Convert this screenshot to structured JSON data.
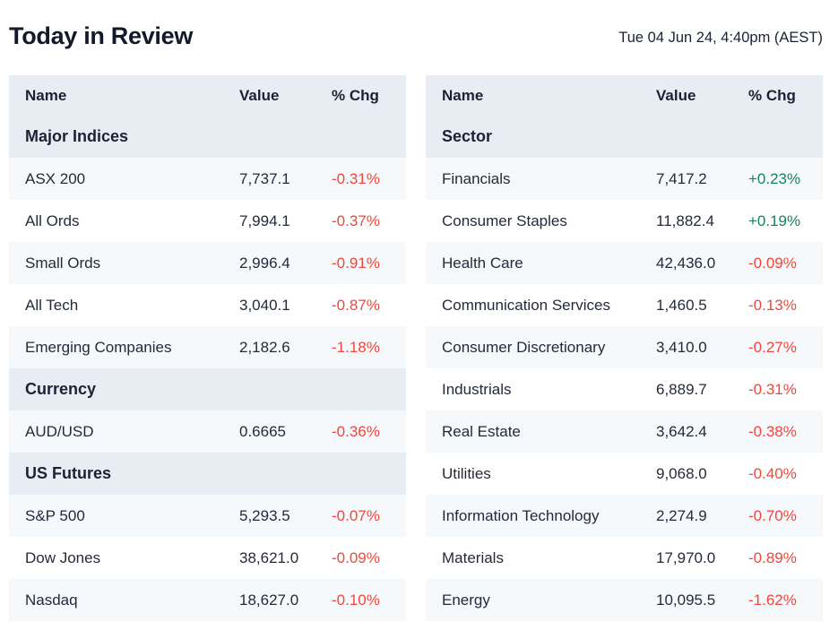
{
  "header": {
    "title": "Today in Review",
    "timestamp": "Tue 04 Jun 24, 4:40pm (AEST)"
  },
  "colors": {
    "header_row_bg": "#e8edf4",
    "stripe_row_bg": "#f6f9fc",
    "negative_change": "#f2463a",
    "positive_change": "#17835a",
    "title_text": "#12192b",
    "body_text": "#232b3b"
  },
  "chart_data": [
    {
      "type": "table",
      "title": "Major Indices, Currency and US Futures",
      "columns": [
        "Name",
        "Value",
        "% Chg"
      ],
      "sections": [
        {
          "header": "Major Indices",
          "rows": [
            [
              "ASX 200",
              "7,737.1",
              "-0.31%"
            ],
            [
              "All Ords",
              "7,994.1",
              "-0.37%"
            ],
            [
              "Small Ords",
              "2,996.4",
              "-0.91%"
            ],
            [
              "All Tech",
              "3,040.1",
              "-0.87%"
            ],
            [
              "Emerging Companies",
              "2,182.6",
              "-1.18%"
            ]
          ]
        },
        {
          "header": "Currency",
          "rows": [
            [
              "AUD/USD",
              "0.6665",
              "-0.36%"
            ]
          ]
        },
        {
          "header": "US Futures",
          "rows": [
            [
              "S&P 500",
              "5,293.5",
              "-0.07%"
            ],
            [
              "Dow Jones",
              "38,621.0",
              "-0.09%"
            ],
            [
              "Nasdaq",
              "18,627.0",
              "-0.10%"
            ]
          ]
        }
      ]
    },
    {
      "type": "table",
      "title": "Sectors",
      "columns": [
        "Name",
        "Value",
        "% Chg"
      ],
      "sections": [
        {
          "header": "Sector",
          "rows": [
            [
              "Financials",
              "7,417.2",
              "+0.23%"
            ],
            [
              "Consumer Staples",
              "11,882.4",
              "+0.19%"
            ],
            [
              "Health Care",
              "42,436.0",
              "-0.09%"
            ],
            [
              "Communication Services",
              "1,460.5",
              "-0.13%"
            ],
            [
              "Consumer Discretionary",
              "3,410.0",
              "-0.27%"
            ],
            [
              "Industrials",
              "6,889.7",
              "-0.31%"
            ],
            [
              "Real Estate",
              "3,642.4",
              "-0.38%"
            ],
            [
              "Utilities",
              "9,068.0",
              "-0.40%"
            ],
            [
              "Information Technology",
              "2,274.9",
              "-0.70%"
            ],
            [
              "Materials",
              "17,970.0",
              "-0.89%"
            ],
            [
              "Energy",
              "10,095.5",
              "-1.62%"
            ]
          ]
        }
      ]
    }
  ]
}
